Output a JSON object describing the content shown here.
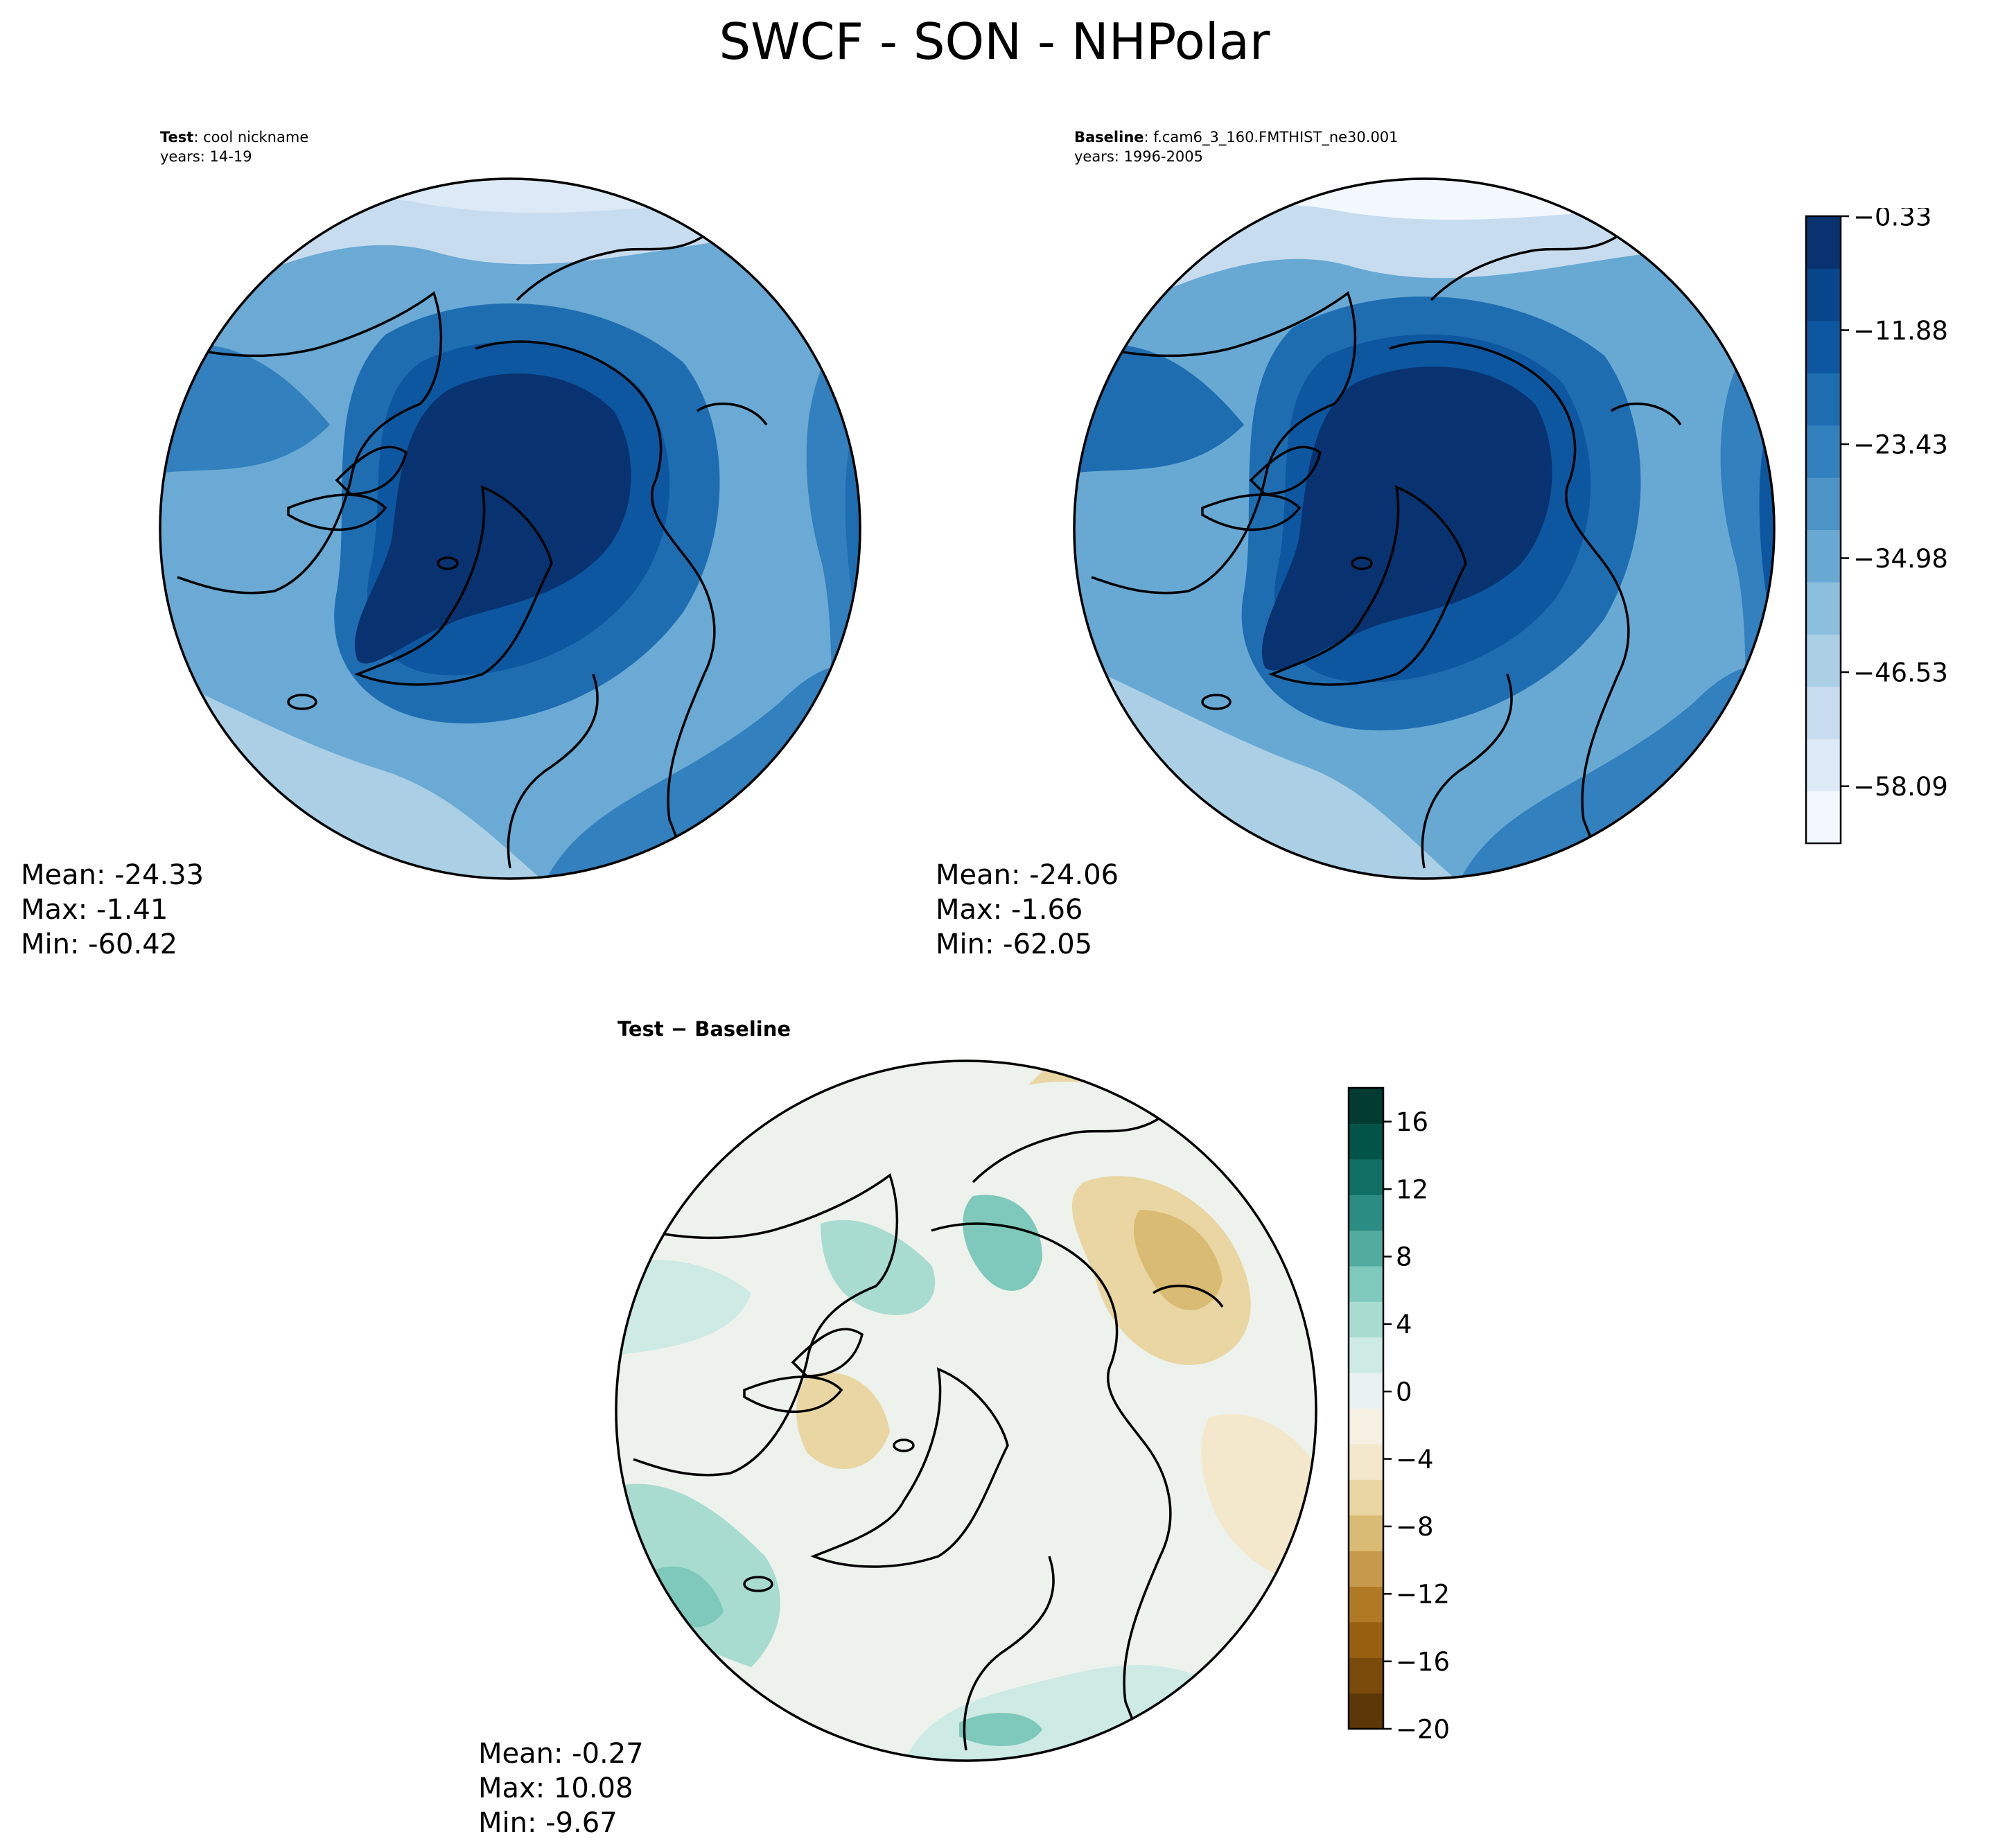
{
  "suptitle": "SWCF - SON - NHPolar",
  "panels": [
    {
      "id": "test",
      "title_bold": "Test",
      "title_rest": ": cool nickname",
      "subtitle": "years: 14-19",
      "stats": {
        "mean": "Mean: -24.33",
        "max": "Max: -1.41",
        "min": "Min: -60.42"
      }
    },
    {
      "id": "baseline",
      "title_bold": "Baseline",
      "title_rest": ": f.cam6_3_160.FMTHIST_ne30.001",
      "subtitle": "years: 1996-2005",
      "stats": {
        "mean": "Mean: -24.06",
        "max": "Max: -1.66",
        "min": "Min: -62.05"
      }
    },
    {
      "id": "diff",
      "title_bold": "Test − Baseline",
      "title_rest": "",
      "subtitle": "",
      "stats": {
        "mean": "Mean: -0.27",
        "max": "Max: 10.08",
        "min": "Min: -9.67"
      }
    }
  ],
  "chart_data": [
    {
      "type": "heatmap",
      "projection": "north-polar-stereographic",
      "panel": "Test",
      "variable": "SWCF",
      "season": "SON",
      "region": "NHPolar",
      "mean": -24.33,
      "max": -1.41,
      "min": -60.42
    },
    {
      "type": "heatmap",
      "projection": "north-polar-stereographic",
      "panel": "Baseline",
      "variable": "SWCF",
      "season": "SON",
      "region": "NHPolar",
      "mean": -24.06,
      "max": -1.66,
      "min": -62.05
    },
    {
      "type": "heatmap",
      "projection": "north-polar-stereographic",
      "panel": "Test - Baseline",
      "variable": "SWCF",
      "season": "SON",
      "region": "NHPolar",
      "mean": -0.27,
      "max": 10.08,
      "min": -9.67
    }
  ],
  "colorbars": {
    "main": {
      "colormap": "Blues",
      "tick_labels": [
        "−0.33",
        "−11.88",
        "−23.43",
        "−34.98",
        "−46.53",
        "−58.09"
      ],
      "tick_values": [
        -0.33,
        -11.88,
        -23.43,
        -34.98,
        -46.53,
        -58.09
      ],
      "range": [
        -63.87,
        -0.33
      ],
      "colors": [
        "#f2f8fd",
        "#dce9f6",
        "#c8dcef",
        "#abcfe5",
        "#8bbfde",
        "#68a9d4",
        "#4c93c6",
        "#3280bd",
        "#1f6db1",
        "#0d57a0",
        "#08468b",
        "#083370"
      ]
    },
    "diff": {
      "colormap": "BrBG",
      "tick_labels": [
        "16",
        "12",
        "8",
        "4",
        "0",
        "−4",
        "−8",
        "−12",
        "−16",
        "−20"
      ],
      "tick_values": [
        16,
        12,
        8,
        4,
        0,
        -4,
        -8,
        -12,
        -16,
        -20
      ],
      "range": [
        -20,
        18
      ],
      "colors": [
        "#5c3707",
        "#7a4a0b",
        "#97600f",
        "#b07a25",
        "#c6994b",
        "#d9bb73",
        "#e9d6a2",
        "#f3e8cb",
        "#f5f0e2",
        "#e9f2f0",
        "#cdeae4",
        "#a8dcd1",
        "#7ec9bb",
        "#51ab9f",
        "#2a8c82",
        "#0f6f65",
        "#025449",
        "#013b32"
      ]
    }
  },
  "colors": {
    "ocean_cool": "#6aaad4",
    "land_deep": "#083370",
    "coastline": "#000000",
    "diff_base": "#eef2ec"
  }
}
